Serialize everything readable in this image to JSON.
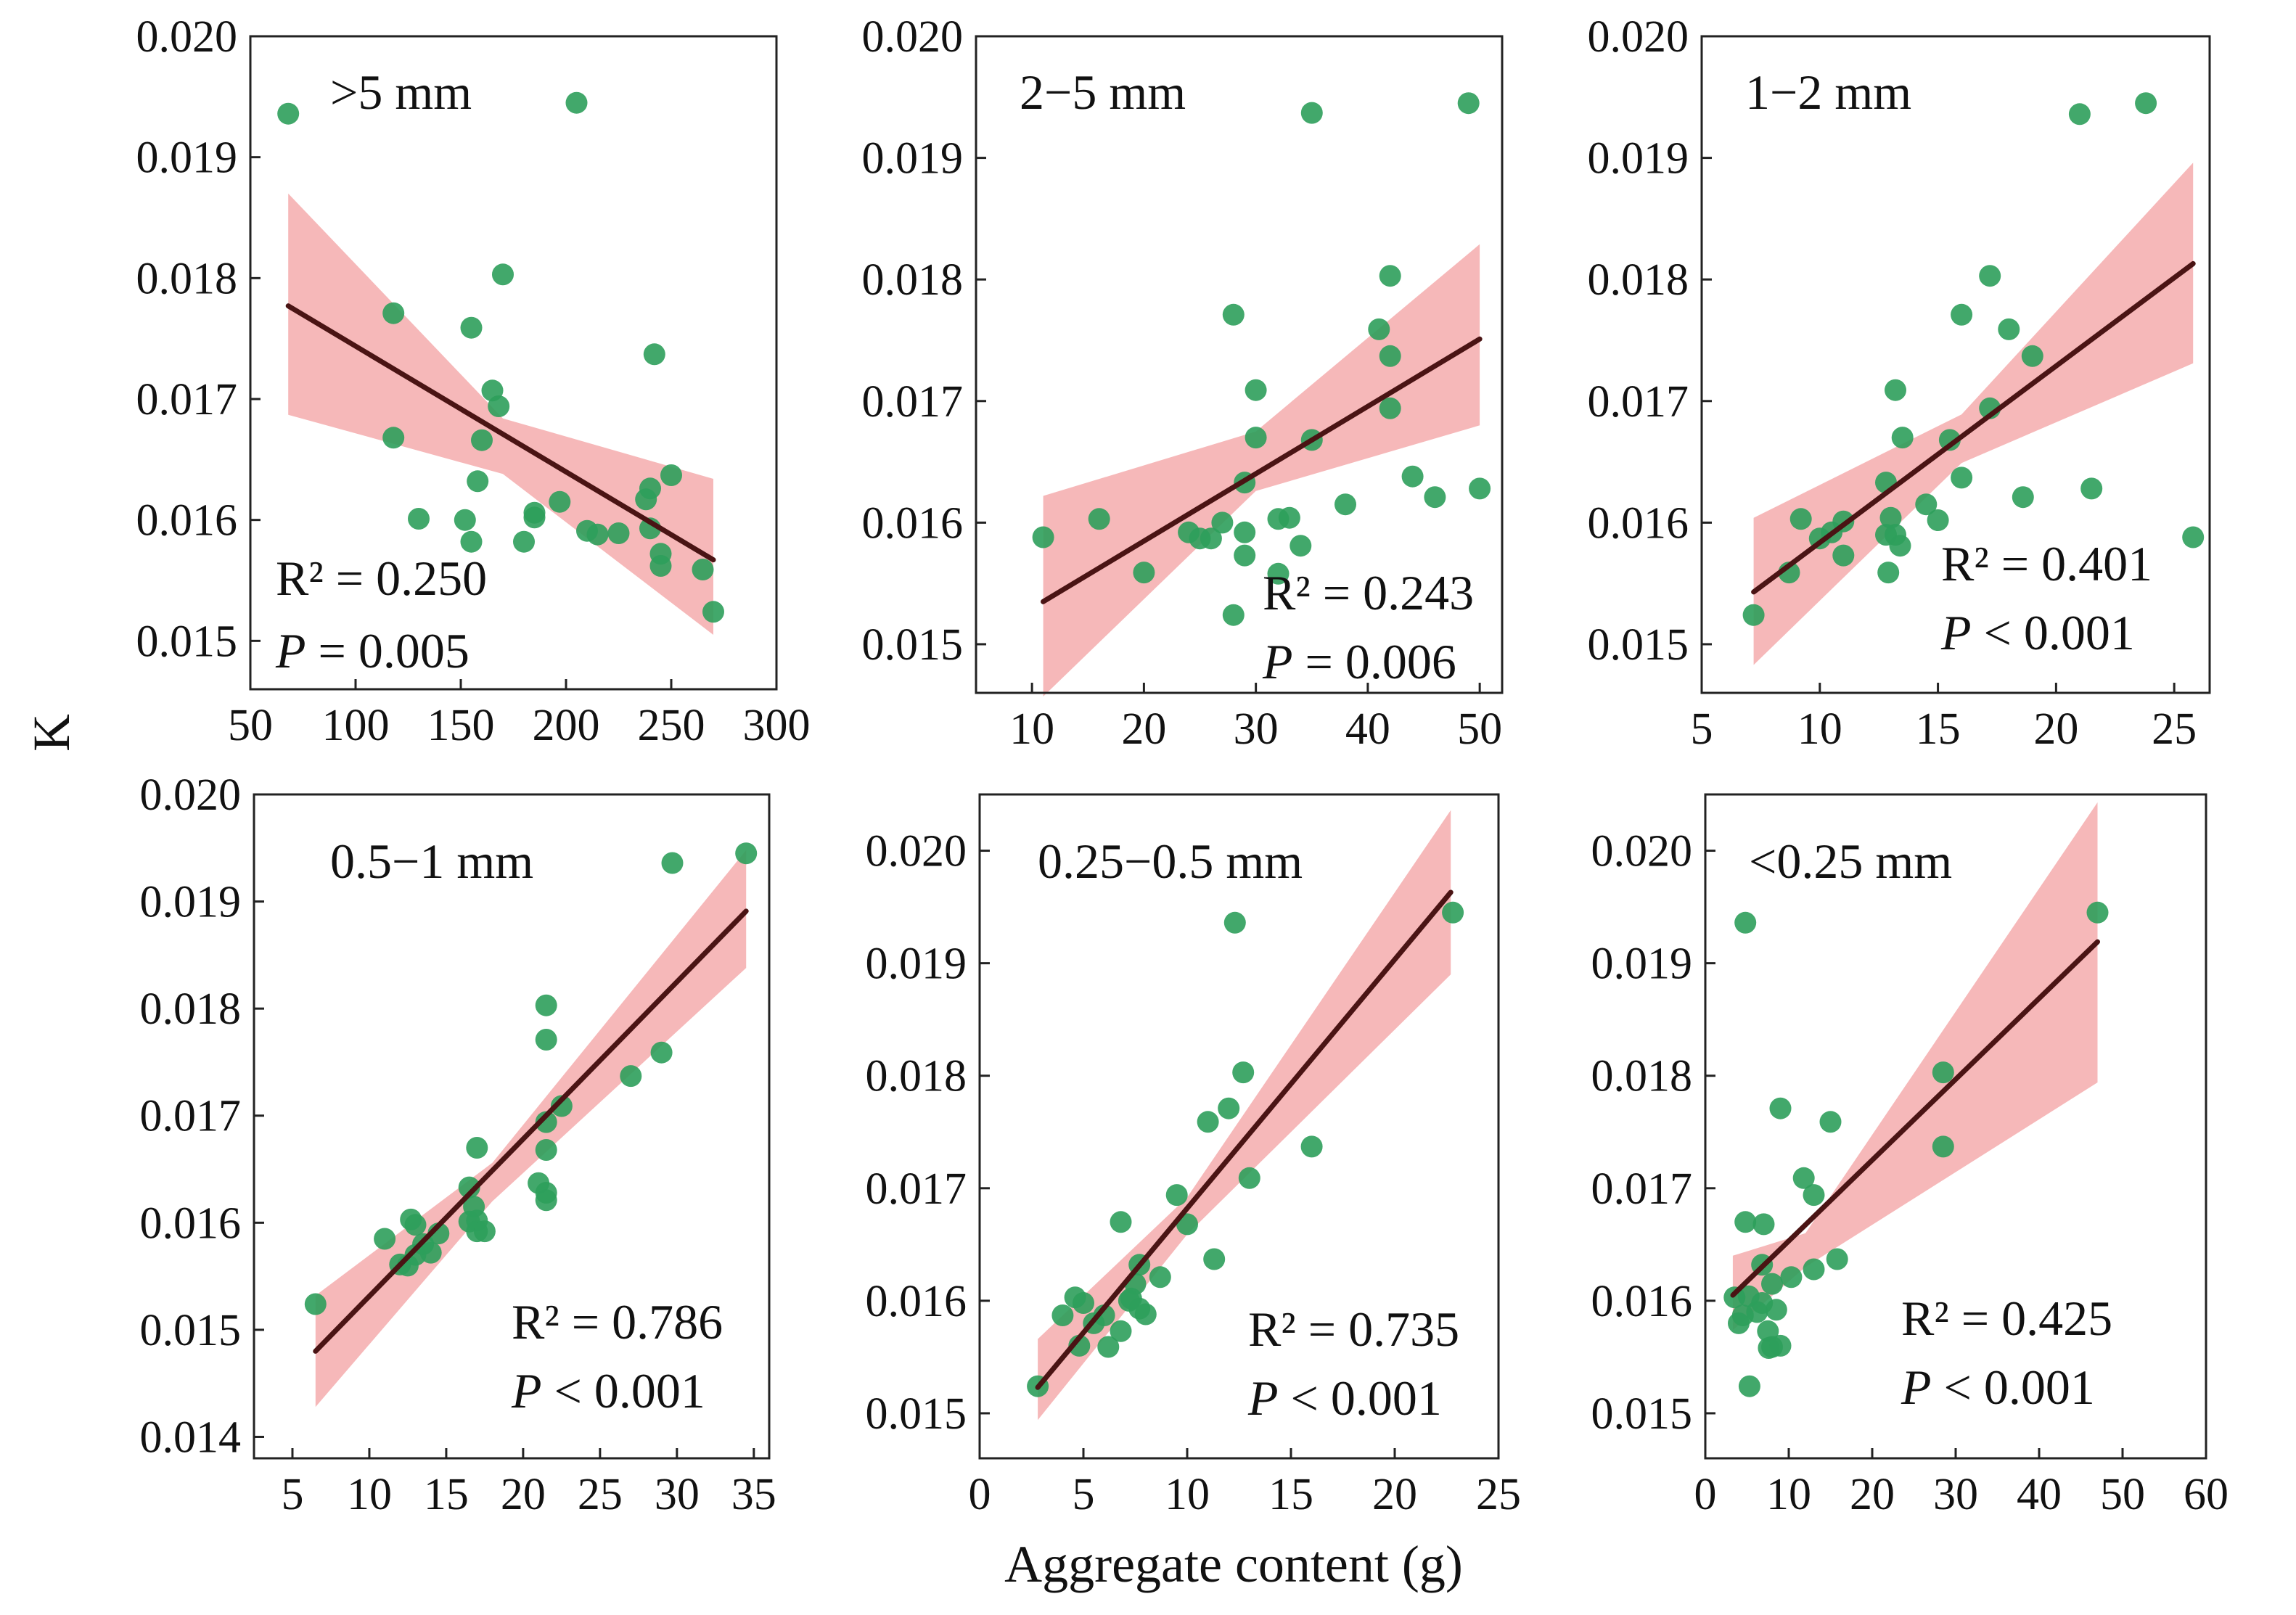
{
  "figure": {
    "ylabel": "K",
    "xlabel": "Aggregate content (g)"
  },
  "colors": {
    "point": "#2e9e5b",
    "band": "#f4a6a8",
    "line": "#4a1414"
  },
  "chart_data": [
    {
      "type": "scatter",
      "label": ">5 mm",
      "r2_text": "R² = 0.250",
      "p_prefix": "P",
      "p_rest": " = 0.005",
      "xlim": [
        50,
        300
      ],
      "ylim": [
        0.0146,
        0.02
      ],
      "xticks": [
        50,
        100,
        150,
        200,
        250,
        300
      ],
      "yticks": [
        0.015,
        0.016,
        0.017,
        0.018,
        0.019,
        0.02
      ],
      "ytick_labels": [
        "0.015",
        "0.016",
        "0.017",
        "0.018",
        "0.019",
        "0.020"
      ],
      "fit": {
        "x0": 68,
        "y0": 0.01777,
        "x1": 270,
        "y1": 0.01567
      },
      "band": {
        "upper": [
          [
            68,
            0.0187
          ],
          [
            170,
            0.01684
          ],
          [
            270,
            0.01634
          ]
        ],
        "lower": [
          [
            68,
            0.01687
          ],
          [
            170,
            0.01638
          ],
          [
            270,
            0.01505
          ]
        ]
      },
      "points": [
        [
          68,
          0.01936
        ],
        [
          205,
          0.01945
        ],
        [
          118,
          0.01771
        ],
        [
          170,
          0.01803
        ],
        [
          155,
          0.01759
        ],
        [
          242,
          0.01737
        ],
        [
          165,
          0.01707
        ],
        [
          168,
          0.01694
        ],
        [
          160,
          0.01666
        ],
        [
          118,
          0.01668
        ],
        [
          158,
          0.01632
        ],
        [
          250,
          0.01637
        ],
        [
          240,
          0.01626
        ],
        [
          238,
          0.01617
        ],
        [
          197,
          0.01615
        ],
        [
          130,
          0.01601
        ],
        [
          152,
          0.016
        ],
        [
          185,
          0.01602
        ],
        [
          185,
          0.01606
        ],
        [
          210,
          0.01591
        ],
        [
          215,
          0.01588
        ],
        [
          225,
          0.01589
        ],
        [
          155,
          0.01582
        ],
        [
          180,
          0.01582
        ],
        [
          240,
          0.01593
        ],
        [
          245,
          0.01572
        ],
        [
          245,
          0.01562
        ],
        [
          265,
          0.01559
        ],
        [
          270,
          0.01524
        ]
      ]
    },
    {
      "type": "scatter",
      "label": "2−5 mm",
      "r2_text": "R² = 0.243",
      "p_prefix": "P",
      "p_rest": " = 0.006",
      "xlim": [
        5,
        52
      ],
      "ylim": [
        0.0146,
        0.02
      ],
      "xticks": [
        10,
        20,
        30,
        40,
        50
      ],
      "yticks": [
        0.015,
        0.016,
        0.017,
        0.018,
        0.019,
        0.02
      ],
      "ytick_labels": [
        "0.015",
        "0.016",
        "0.017",
        "0.018",
        "0.019",
        "0.020"
      ],
      "fit": {
        "x0": 11,
        "y0": 0.01535,
        "x1": 50,
        "y1": 0.01751
      },
      "band": {
        "upper": [
          [
            11,
            0.01622
          ],
          [
            30,
            0.01675
          ],
          [
            50,
            0.01829
          ]
        ],
        "lower": [
          [
            11,
            0.01457
          ],
          [
            30,
            0.01626
          ],
          [
            50,
            0.0168
          ]
        ]
      },
      "points": [
        [
          35,
          0.01937
        ],
        [
          49,
          0.01945
        ],
        [
          28,
          0.01771
        ],
        [
          41,
          0.01759
        ],
        [
          42,
          0.01803
        ],
        [
          42,
          0.01737
        ],
        [
          30,
          0.01709
        ],
        [
          42,
          0.01694
        ],
        [
          30,
          0.0167
        ],
        [
          35,
          0.01668
        ],
        [
          29,
          0.01633
        ],
        [
          44,
          0.01638
        ],
        [
          50,
          0.01628
        ],
        [
          46,
          0.01621
        ],
        [
          38,
          0.01615
        ],
        [
          16,
          0.01603
        ],
        [
          27,
          0.016
        ],
        [
          33,
          0.01604
        ],
        [
          32,
          0.01603
        ],
        [
          24,
          0.01592
        ],
        [
          25,
          0.01587
        ],
        [
          29,
          0.01592
        ],
        [
          26,
          0.01587
        ],
        [
          11,
          0.01588
        ],
        [
          34,
          0.01581
        ],
        [
          29,
          0.01573
        ],
        [
          20,
          0.01559
        ],
        [
          32,
          0.01558
        ],
        [
          28,
          0.01524
        ]
      ]
    },
    {
      "type": "scatter",
      "label": "1−2 mm",
      "r2_text": "R² = 0.401",
      "p_prefix": "P",
      "p_rest": " < 0.001",
      "xlim": [
        5,
        26.5
      ],
      "ylim": [
        0.0146,
        0.02
      ],
      "xticks": [
        5,
        10,
        15,
        20,
        25
      ],
      "yticks": [
        0.015,
        0.016,
        0.017,
        0.018,
        0.019,
        0.02
      ],
      "ytick_labels": [
        "0.015",
        "0.016",
        "0.017",
        "0.018",
        "0.019",
        "0.020"
      ],
      "fit": {
        "x0": 7.2,
        "y0": 0.01543,
        "x1": 25.8,
        "y1": 0.01813
      },
      "band": {
        "upper": [
          [
            7.2,
            0.01604
          ],
          [
            16,
            0.01689
          ],
          [
            25.8,
            0.01896
          ]
        ],
        "lower": [
          [
            7.2,
            0.01483
          ],
          [
            16,
            0.01649
          ],
          [
            25.8,
            0.01731
          ]
        ]
      },
      "points": [
        [
          21,
          0.01936
        ],
        [
          23.8,
          0.01945
        ],
        [
          17.2,
          0.01803
        ],
        [
          16,
          0.01771
        ],
        [
          18,
          0.01759
        ],
        [
          19,
          0.01737
        ],
        [
          13.2,
          0.01709
        ],
        [
          17.2,
          0.01694
        ],
        [
          13.5,
          0.0167
        ],
        [
          15.5,
          0.01668
        ],
        [
          12.8,
          0.01633
        ],
        [
          16,
          0.01637
        ],
        [
          21.5,
          0.01628
        ],
        [
          18.6,
          0.01621
        ],
        [
          14.5,
          0.01615
        ],
        [
          9.2,
          0.01603
        ],
        [
          11,
          0.01601
        ],
        [
          13.0,
          0.01604
        ],
        [
          15,
          0.01602
        ],
        [
          10.5,
          0.01592
        ],
        [
          10.0,
          0.01587
        ],
        [
          13.2,
          0.0159
        ],
        [
          12.8,
          0.0159
        ],
        [
          25.8,
          0.01588
        ],
        [
          13.4,
          0.01581
        ],
        [
          11,
          0.01573
        ],
        [
          8.7,
          0.01559
        ],
        [
          12.9,
          0.01559
        ],
        [
          7.2,
          0.01524
        ]
      ]
    },
    {
      "type": "scatter",
      "label": "0.5−1 mm",
      "r2_text": "R² = 0.786",
      "p_prefix": "P",
      "p_rest": " < 0.001",
      "xlim": [
        2.5,
        36
      ],
      "ylim": [
        0.0138,
        0.02
      ],
      "xticks": [
        5,
        10,
        15,
        20,
        25,
        30,
        35
      ],
      "yticks": [
        0.014,
        0.015,
        0.016,
        0.017,
        0.018,
        0.019,
        0.02
      ],
      "ytick_labels": [
        "0.014",
        "0.015",
        "0.016",
        "0.017",
        "0.018",
        "0.019",
        "0.020"
      ],
      "fit": {
        "x0": 6.5,
        "y0": 0.0148,
        "x1": 34.5,
        "y1": 0.01891
      },
      "band": {
        "upper": [
          [
            6.5,
            0.01532
          ],
          [
            18,
            0.01656
          ],
          [
            34.5,
            0.01948
          ]
        ],
        "lower": [
          [
            6.5,
            0.01428
          ],
          [
            18,
            0.0162
          ],
          [
            34.5,
            0.01838
          ]
        ]
      },
      "points": [
        [
          29.7,
          0.01936
        ],
        [
          34.5,
          0.01945
        ],
        [
          21.5,
          0.01803
        ],
        [
          21.5,
          0.01771
        ],
        [
          29,
          0.01759
        ],
        [
          27,
          0.01737
        ],
        [
          22.5,
          0.01709
        ],
        [
          21.5,
          0.01694
        ],
        [
          17,
          0.0167
        ],
        [
          21.5,
          0.01668
        ],
        [
          16.5,
          0.01633
        ],
        [
          21,
          0.01637
        ],
        [
          21.5,
          0.01628
        ],
        [
          21.5,
          0.01621
        ],
        [
          16.8,
          0.01615
        ],
        [
          12.7,
          0.01603
        ],
        [
          16.5,
          0.01601
        ],
        [
          13,
          0.01598
        ],
        [
          17,
          0.01602
        ],
        [
          11,
          0.01585
        ],
        [
          17,
          0.01592
        ],
        [
          17.5,
          0.01592
        ],
        [
          12,
          0.01561
        ],
        [
          13,
          0.0157
        ],
        [
          14.5,
          0.0159
        ],
        [
          14,
          0.01572
        ],
        [
          6.5,
          0.01524
        ],
        [
          12.5,
          0.0156
        ],
        [
          13.5,
          0.0158
        ]
      ]
    },
    {
      "type": "scatter",
      "label": "0.25−0.5 mm",
      "r2_text": "R² = 0.735",
      "p_prefix": "P",
      "p_rest": " < 0.001",
      "xlim": [
        0,
        25
      ],
      "ylim": [
        0.0146,
        0.0205
      ],
      "xticks": [
        0,
        5,
        10,
        15,
        20,
        25
      ],
      "yticks": [
        0.015,
        0.016,
        0.017,
        0.018,
        0.019,
        0.02
      ],
      "ytick_labels": [
        "0.015",
        "0.016",
        "0.017",
        "0.018",
        "0.019",
        "0.020"
      ],
      "fit": {
        "x0": 2.8,
        "y0": 0.01523,
        "x1": 22.7,
        "y1": 0.01963
      },
      "band": {
        "upper": [
          [
            2.8,
            0.01566
          ],
          [
            10,
            0.01692
          ],
          [
            22.7,
            0.02036
          ]
        ],
        "lower": [
          [
            2.8,
            0.01494
          ],
          [
            10,
            0.01659
          ],
          [
            22.7,
            0.0189
          ]
        ]
      },
      "points": [
        [
          12.3,
          0.01936
        ],
        [
          22.8,
          0.01945
        ],
        [
          12.7,
          0.01803
        ],
        [
          12,
          0.01771
        ],
        [
          11,
          0.01759
        ],
        [
          16,
          0.01737
        ],
        [
          13,
          0.01709
        ],
        [
          9.5,
          0.01694
        ],
        [
          10,
          0.01668
        ],
        [
          6.8,
          0.0167
        ],
        [
          11.3,
          0.01637
        ],
        [
          8.7,
          0.01621
        ],
        [
          7.3,
          0.01602
        ],
        [
          4.6,
          0.01603
        ],
        [
          5.0,
          0.01598
        ],
        [
          7.5,
          0.01615
        ],
        [
          7.7,
          0.01632
        ],
        [
          7.7,
          0.01593
        ],
        [
          7.2,
          0.016
        ],
        [
          6,
          0.01587
        ],
        [
          4,
          0.01587
        ],
        [
          8,
          0.01588
        ],
        [
          6.8,
          0.01573
        ],
        [
          4.8,
          0.0156
        ],
        [
          6.2,
          0.01559
        ],
        [
          2.8,
          0.01524
        ],
        [
          5.5,
          0.0158
        ]
      ]
    },
    {
      "type": "scatter",
      "label": "<0.25 mm",
      "r2_text": "R² = 0.425",
      "p_prefix": "P",
      "p_rest": " < 0.001",
      "xlim": [
        0,
        60
      ],
      "ylim": [
        0.0146,
        0.0205
      ],
      "xticks": [
        0,
        10,
        20,
        30,
        40,
        50,
        60
      ],
      "yticks": [
        0.015,
        0.016,
        0.017,
        0.018,
        0.019,
        0.02
      ],
      "ytick_labels": [
        "0.015",
        "0.016",
        "0.017",
        "0.018",
        "0.019",
        "0.020"
      ],
      "fit": {
        "x0": 3.3,
        "y0": 0.01605,
        "x1": 47,
        "y1": 0.01919
      },
      "band": {
        "upper": [
          [
            3.3,
            0.0164
          ],
          [
            12,
            0.0166
          ],
          [
            47,
            0.02043
          ]
        ],
        "lower": [
          [
            3.3,
            0.01574
          ],
          [
            12,
            0.0163
          ],
          [
            47,
            0.01794
          ]
        ]
      },
      "points": [
        [
          4.8,
          0.01936
        ],
        [
          47,
          0.01945
        ],
        [
          28.5,
          0.01803
        ],
        [
          9,
          0.01771
        ],
        [
          15,
          0.01759
        ],
        [
          28.5,
          0.01737
        ],
        [
          11.8,
          0.01709
        ],
        [
          13,
          0.01694
        ],
        [
          4.8,
          0.0167
        ],
        [
          7,
          0.01668
        ],
        [
          15.8,
          0.01637
        ],
        [
          6.8,
          0.01632
        ],
        [
          13,
          0.01628
        ],
        [
          10.3,
          0.01621
        ],
        [
          8,
          0.01615
        ],
        [
          3.5,
          0.01603
        ],
        [
          5.2,
          0.01604
        ],
        [
          6.8,
          0.01598
        ],
        [
          6.2,
          0.0159
        ],
        [
          4.5,
          0.01587
        ],
        [
          8.5,
          0.01592
        ],
        [
          4,
          0.0158
        ],
        [
          7.5,
          0.01573
        ],
        [
          8,
          0.01559
        ],
        [
          7.6,
          0.01558
        ],
        [
          5.3,
          0.01524
        ],
        [
          9,
          0.0156
        ]
      ]
    }
  ]
}
